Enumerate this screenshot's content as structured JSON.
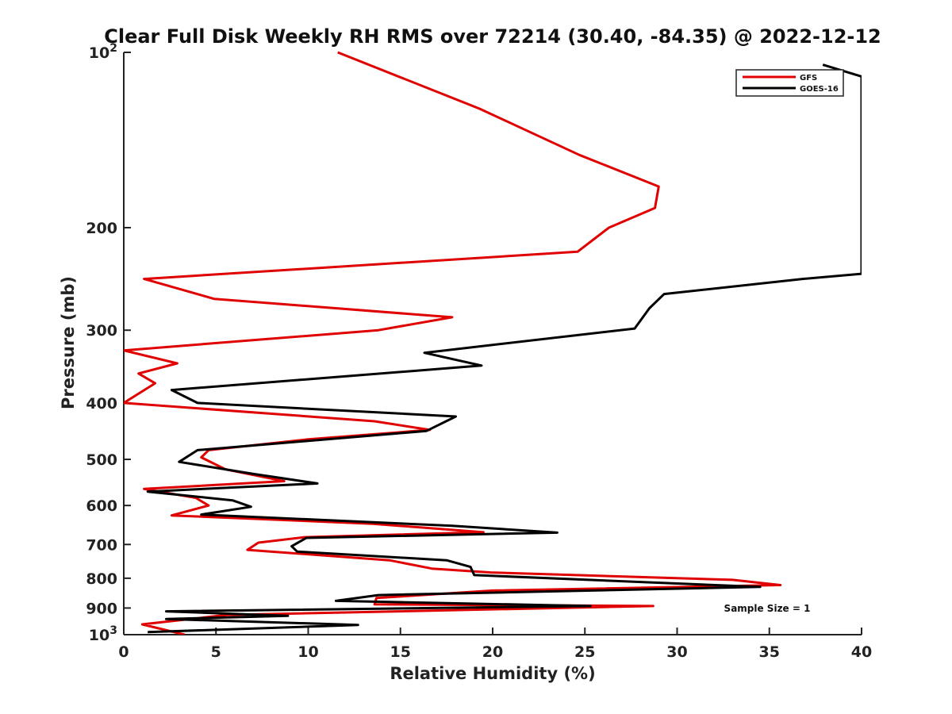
{
  "chart_data": {
    "type": "line",
    "title": "Clear Full Disk Weekly RH RMS over 72214 (30.40, -84.35) @ 2022-12-12",
    "xlabel": "Relative Humidity (%)",
    "ylabel": "Pressure (mb)",
    "xlim": [
      0,
      40
    ],
    "ylim": [
      100,
      1000
    ],
    "yscale": "log",
    "y_reversed": true,
    "x_ticks": [
      0,
      5,
      10,
      15,
      20,
      25,
      30,
      35,
      40
    ],
    "x_tick_labels": [
      "0",
      "5",
      "10",
      "15",
      "20",
      "25",
      "30",
      "35",
      "40"
    ],
    "y_ticks": [
      {
        "value": 100,
        "base": "10",
        "exp": "2"
      },
      {
        "value": 200,
        "label": "200"
      },
      {
        "value": 300,
        "label": "300"
      },
      {
        "value": 400,
        "label": "400"
      },
      {
        "value": 500,
        "label": "500"
      },
      {
        "value": 600,
        "label": "600"
      },
      {
        "value": 700,
        "label": "700"
      },
      {
        "value": 800,
        "label": "800"
      },
      {
        "value": 900,
        "label": "900"
      },
      {
        "value": 1000,
        "base": "10",
        "exp": "3"
      }
    ],
    "legend_position": "top-right",
    "annotation": "Sample Size = 1",
    "series": [
      {
        "name": "GFS",
        "color": "#e00000",
        "points": [
          [
            11.6,
            100
          ],
          [
            19.3,
            125
          ],
          [
            24.7,
            150
          ],
          [
            29.0,
            170
          ],
          [
            28.8,
            185
          ],
          [
            26.3,
            200
          ],
          [
            24.6,
            220
          ],
          [
            1.1,
            245
          ],
          [
            4.9,
            265
          ],
          [
            17.8,
            285
          ],
          [
            13.8,
            300
          ],
          [
            0.0,
            325
          ],
          [
            2.9,
            342
          ],
          [
            0.8,
            356
          ],
          [
            1.7,
            370
          ],
          [
            0.0,
            400
          ],
          [
            13.6,
            430
          ],
          [
            16.6,
            445
          ],
          [
            10.0,
            462
          ],
          [
            4.6,
            482
          ],
          [
            4.2,
            496
          ],
          [
            5.5,
            520
          ],
          [
            8.7,
            545
          ],
          [
            1.1,
            562
          ],
          [
            3.9,
            582
          ],
          [
            4.6,
            600
          ],
          [
            2.6,
            624
          ],
          [
            13.5,
            645
          ],
          [
            19.5,
            667
          ],
          [
            9.8,
            680
          ],
          [
            7.3,
            695
          ],
          [
            6.7,
            715
          ],
          [
            14.4,
            745
          ],
          [
            16.7,
            770
          ],
          [
            19.9,
            782
          ],
          [
            33.0,
            805
          ],
          [
            35.6,
            822
          ],
          [
            20.0,
            840
          ],
          [
            13.7,
            865
          ],
          [
            13.6,
            887
          ],
          [
            28.7,
            893
          ],
          [
            5.6,
            925
          ],
          [
            1.0,
            960
          ],
          [
            3.3,
            1000
          ]
        ]
      },
      {
        "name": "GOES-16",
        "color": "#000000",
        "points": [
          [
            37.9,
            105
          ],
          [
            40.0,
            110
          ],
          [
            40.0,
            240
          ],
          [
            36.8,
            245
          ],
          [
            29.3,
            260
          ],
          [
            28.5,
            275
          ],
          [
            27.7,
            298
          ],
          [
            16.3,
            328
          ],
          [
            19.4,
            345
          ],
          [
            2.6,
            380
          ],
          [
            4.0,
            400
          ],
          [
            18.0,
            422
          ],
          [
            16.4,
            447
          ],
          [
            4.0,
            482
          ],
          [
            3.0,
            505
          ],
          [
            7.1,
            530
          ],
          [
            10.5,
            550
          ],
          [
            1.3,
            568
          ],
          [
            5.9,
            588
          ],
          [
            6.9,
            603
          ],
          [
            4.2,
            622
          ],
          [
            17.8,
            650
          ],
          [
            23.5,
            668
          ],
          [
            9.9,
            682
          ],
          [
            9.1,
            705
          ],
          [
            9.4,
            720
          ],
          [
            17.5,
            745
          ],
          [
            18.8,
            765
          ],
          [
            19.0,
            790
          ],
          [
            34.5,
            828
          ],
          [
            13.8,
            855
          ],
          [
            11.5,
            875
          ],
          [
            25.3,
            893
          ],
          [
            2.3,
            912
          ],
          [
            8.9,
            928
          ],
          [
            2.3,
            940
          ],
          [
            12.7,
            962
          ],
          [
            1.3,
            990
          ]
        ]
      }
    ]
  }
}
